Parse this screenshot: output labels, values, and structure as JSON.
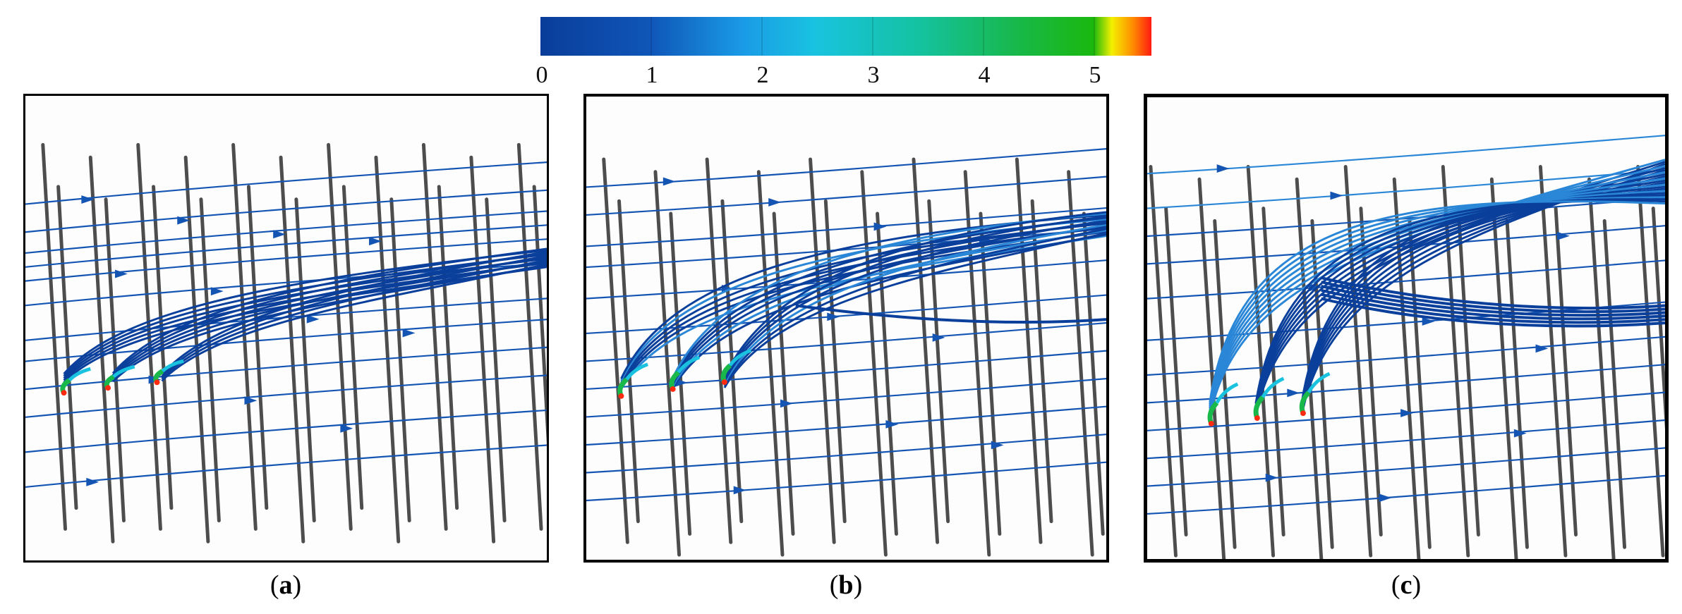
{
  "colorbar": {
    "ticks": [
      "0",
      "1",
      "2",
      "3",
      "4",
      "5"
    ],
    "colors": [
      "#0a3d9a",
      "#0f56b8",
      "#1a88df",
      "#19c3e0",
      "#14c2a0",
      "#18b84a",
      "#1ab80e",
      "#f3f000",
      "#ff8a00",
      "#ff1a12"
    ]
  },
  "panels": [
    {
      "caption_open": "(",
      "caption_letter": "a",
      "caption_close": ")",
      "border_color": "#000000"
    },
    {
      "caption_open": "(",
      "caption_letter": "b",
      "caption_close": ")",
      "border_color": "#000000"
    },
    {
      "caption_open": "(",
      "caption_letter": "c",
      "caption_close": ")",
      "border_color": "#000000"
    }
  ],
  "colors": {
    "wire": "#4d4d4d",
    "streamline": "#1455b3",
    "streamline_dark": "#0a3f9b",
    "streamline_light": "#2a86d6",
    "jet_cyan": "#19c3e0",
    "jet_green": "#18b84a",
    "jet_red": "#ff2a10"
  }
}
